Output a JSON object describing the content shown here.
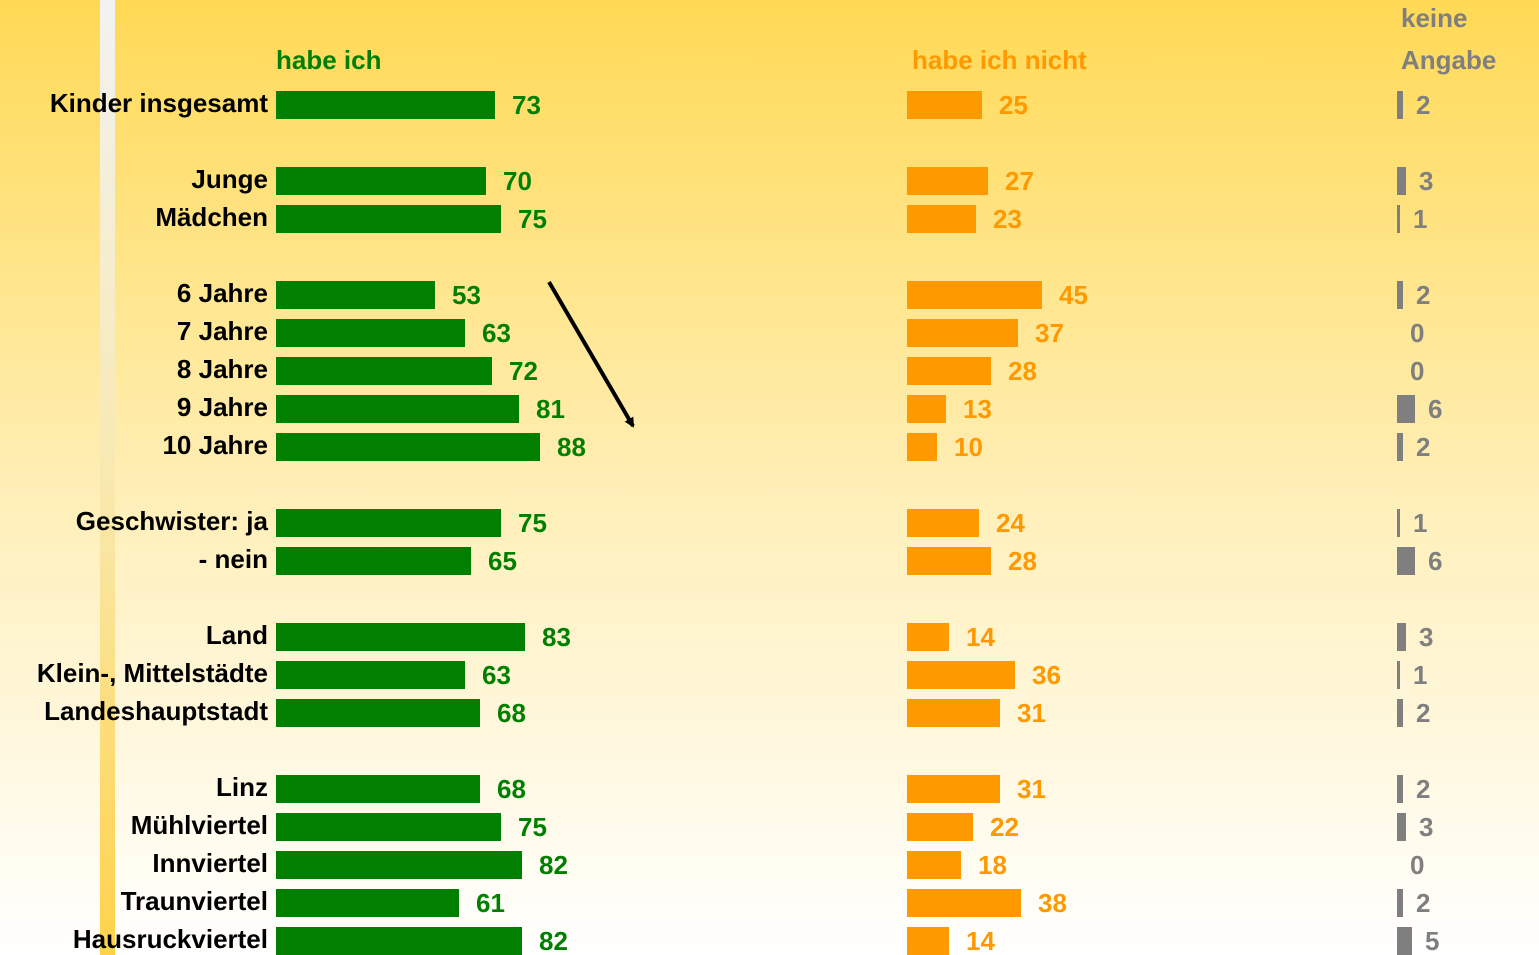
{
  "chart_data": {
    "type": "bar",
    "orientation": "horizontal",
    "xlim": [
      0,
      100
    ],
    "categories": [
      "Kinder insgesamt",
      null,
      "Junge",
      "Mädchen",
      null,
      "6 Jahre",
      "7 Jahre",
      "8 Jahre",
      "9 Jahre",
      "10 Jahre",
      null,
      "Geschwister: ja",
      "- nein",
      null,
      "Land",
      "Klein-, Mittelstädte",
      "Landeshauptstadt",
      null,
      "Linz",
      "Mühlviertel",
      "Innviertel",
      "Traunviertel",
      "Hausruckviertel"
    ],
    "series": [
      {
        "name": "habe ich",
        "color": "#007f00",
        "values": [
          73,
          null,
          70,
          75,
          null,
          53,
          63,
          72,
          81,
          88,
          null,
          75,
          65,
          null,
          83,
          63,
          68,
          null,
          68,
          75,
          82,
          61,
          82
        ]
      },
      {
        "name": "habe ich nicht",
        "color": "#ff9900",
        "values": [
          25,
          null,
          27,
          23,
          null,
          45,
          37,
          28,
          13,
          10,
          null,
          24,
          28,
          null,
          14,
          36,
          31,
          null,
          31,
          22,
          18,
          38,
          14
        ]
      },
      {
        "name": "keine Angabe",
        "color": "#7f7f7f",
        "values": [
          2,
          null,
          3,
          1,
          null,
          2,
          0,
          0,
          6,
          2,
          null,
          1,
          6,
          null,
          3,
          1,
          2,
          null,
          2,
          3,
          0,
          2,
          5
        ]
      }
    ]
  }
}
